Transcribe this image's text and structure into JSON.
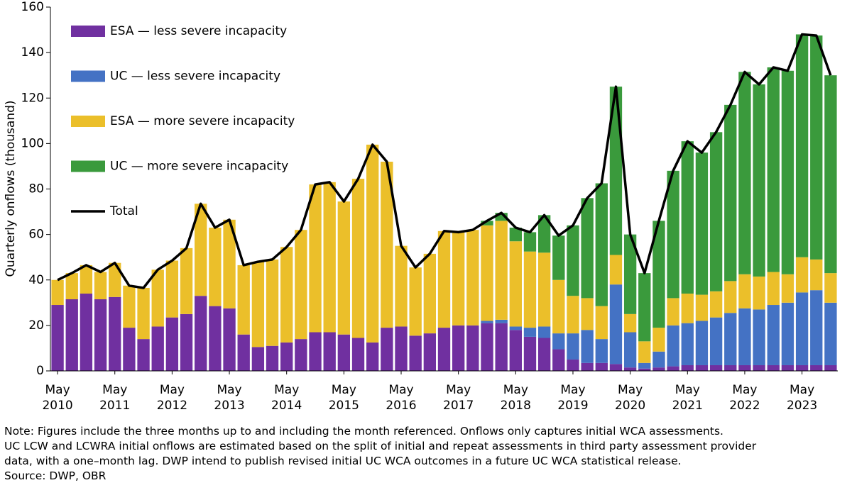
{
  "chart_data": {
    "type": "bar",
    "stacked": true,
    "y_label": "Quarterly onflows (thousand)",
    "categories": [
      "May 2010",
      null,
      null,
      null,
      "May 2011",
      null,
      null,
      null,
      "May 2012",
      null,
      null,
      null,
      "May 2013",
      null,
      null,
      null,
      "May 2014",
      null,
      null,
      null,
      "May 2015",
      null,
      null,
      null,
      "May 2016",
      null,
      null,
      null,
      "May 2017",
      null,
      null,
      null,
      "May 2018",
      null,
      null,
      null,
      "May 2019",
      null,
      null,
      null,
      "May 2020",
      null,
      null,
      null,
      "May 2021",
      null,
      null,
      null,
      "May 2022",
      null,
      null,
      null,
      "May 2023",
      null,
      null
    ],
    "series": [
      {
        "name": "ESA — less severe incapacity",
        "color": "#7030a0",
        "values": [
          29,
          31.5,
          34,
          31.5,
          32.5,
          19,
          14,
          19.5,
          23.5,
          25,
          33,
          28.5,
          27.5,
          16,
          10.5,
          11,
          12.5,
          14,
          17,
          17,
          16,
          14.5,
          12.5,
          19,
          19.5,
          15.5,
          16.5,
          19,
          20,
          20,
          21,
          21,
          18,
          15,
          14.5,
          9.5,
          5,
          3.5,
          3.5,
          3,
          1.5,
          1,
          1.5,
          2,
          2.5,
          2.5,
          2.5,
          2.5,
          2.5,
          2.5,
          2.5,
          2.5,
          2.5,
          2.5,
          2.5
        ]
      },
      {
        "name": "UC — less severe incapacity",
        "color": "#4472c4",
        "values": [
          0,
          0,
          0,
          0,
          0,
          0,
          0,
          0,
          0,
          0,
          0,
          0,
          0,
          0,
          0,
          0,
          0,
          0,
          0,
          0,
          0,
          0,
          0,
          0,
          0,
          0,
          0,
          0,
          0,
          0,
          1,
          1.5,
          1.5,
          4,
          5,
          7,
          11.5,
          14.5,
          10.5,
          35,
          15.5,
          2.5,
          7,
          18,
          18.5,
          19.5,
          21,
          23,
          25,
          24.5,
          26.5,
          27.5,
          32,
          33,
          27.5
        ]
      },
      {
        "name": "ESA — more severe incapacity",
        "color": "#ebbf2a",
        "values": [
          11,
          11.5,
          12.5,
          12,
          15,
          18.5,
          22.5,
          25,
          25,
          29,
          40.5,
          34.5,
          39,
          30.5,
          37.5,
          38,
          42,
          48,
          65,
          66,
          58.5,
          70,
          87,
          73,
          35.5,
          30,
          35,
          42.5,
          41,
          42,
          42,
          43.5,
          37.5,
          33.5,
          32.5,
          23.5,
          16.5,
          14,
          14.5,
          13,
          8,
          9.5,
          10.5,
          12,
          13,
          11.5,
          11.5,
          14,
          15,
          14.5,
          14.5,
          12.5,
          15.5,
          13.5,
          13
        ]
      },
      {
        "name": "UC — more severe incapacity",
        "color": "#3a9a3c",
        "values": [
          0,
          0,
          0,
          0,
          0,
          0,
          0,
          0,
          0,
          0,
          0,
          0,
          0,
          0,
          0,
          0,
          0,
          0,
          0,
          0,
          0,
          0,
          0,
          0,
          0,
          0,
          0,
          0,
          0,
          0,
          2,
          3.5,
          6,
          8.5,
          16.5,
          19.5,
          31,
          44,
          54,
          74,
          35,
          30,
          47,
          56,
          67,
          62.5,
          70,
          77.5,
          89,
          84.5,
          90,
          89.5,
          98,
          98.5,
          87
        ]
      },
      {
        "name": "Total",
        "type": "line",
        "color": "#000000",
        "values": [
          40,
          43,
          46.5,
          43.5,
          47.5,
          37.5,
          36.5,
          44.5,
          48.5,
          54,
          73.5,
          63,
          66.5,
          46.5,
          48,
          49,
          54.5,
          62,
          82,
          83,
          74.5,
          84.5,
          99.5,
          92,
          55,
          45.5,
          51.5,
          61.5,
          61,
          62,
          66,
          69.5,
          63,
          61,
          68.5,
          59.5,
          64,
          76,
          82.5,
          125,
          60,
          43,
          66,
          88,
          101,
          96,
          105,
          117,
          131.5,
          126,
          133.5,
          132,
          148,
          147.5,
          130
        ]
      }
    ],
    "ylim": [
      0,
      160
    ],
    "yticks": [
      0,
      20,
      40,
      60,
      80,
      100,
      120,
      140,
      160
    ],
    "grid": false,
    "legend": "upper left"
  },
  "notes": [
    "Note: Figures include the three months up to and including the month referenced. Onflows only captures initial WCA assessments.",
    "UC LCW and LCWRA initial onflows are estimated based on the split of initial and repeat assessments in third party assessment provider",
    "data, with a one–month lag. DWP intend to publish revised initial UC WCA outcomes in a future UC WCA statistical release.",
    "Source: DWP, OBR"
  ]
}
